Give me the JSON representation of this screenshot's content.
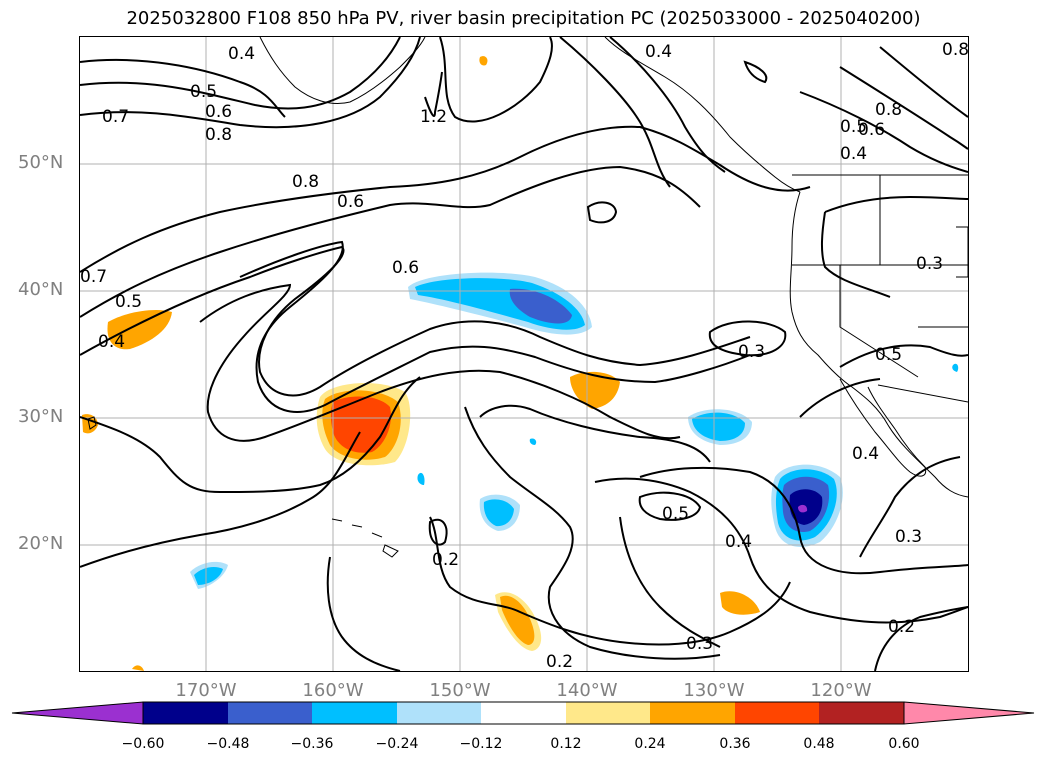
{
  "title": "2025032800 F108 850 hPa PV, river basin precipitation PC (2025033000 - 2025040200)",
  "lat_labels": [
    "50°N",
    "40°N",
    "30°N",
    "20°N"
  ],
  "lon_labels": [
    "170°W",
    "160°W",
    "150°W",
    "140°W",
    "130°W",
    "120°W"
  ],
  "contour_labels": [
    "0.4",
    "0.5",
    "0.6",
    "0.7",
    "0.8",
    "1.2",
    "0.8",
    "0.6",
    "0.6",
    "0.7",
    "0.5",
    "0.4",
    "0.4",
    "0.8",
    "0.6",
    "0.5",
    "0.4",
    "0.3",
    "0.3",
    "0.5",
    "0.4",
    "0.5",
    "0.4",
    "0.3",
    "0.2",
    "0.3",
    "0.2",
    "0.2",
    "0.8"
  ],
  "colorbar": {
    "ticks": [
      "−0.60",
      "−0.48",
      "−0.36",
      "−0.24",
      "−0.12",
      "0.12",
      "0.24",
      "0.36",
      "0.48",
      "0.60"
    ],
    "colors": [
      "#9b30d0",
      "#00008b",
      "#3a5fcd",
      "#00bfff",
      "#afe1fa",
      "#ffffff",
      "#ffe88a",
      "#ffa500",
      "#ff4500",
      "#b22222",
      "#ff88aa"
    ]
  },
  "colors": {
    "text": "#000000",
    "axis_label": "#808080",
    "grid": "#b0b0b0"
  }
}
